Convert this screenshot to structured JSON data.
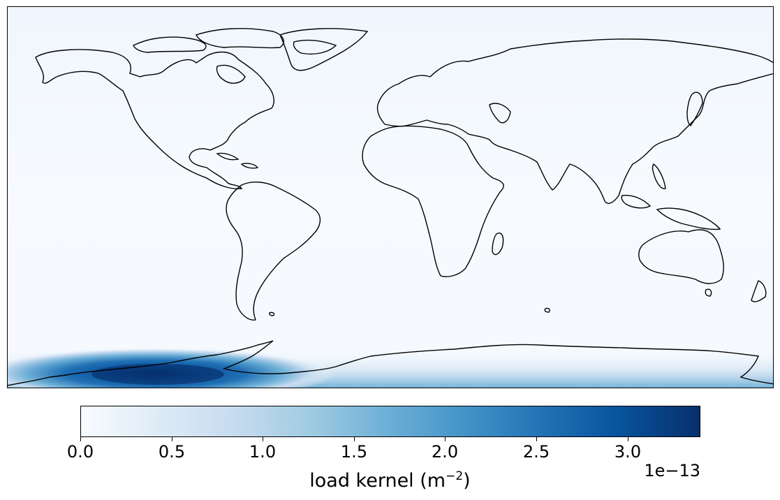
{
  "colormap": {
    "name": "Blues",
    "stops": [
      "#f7fbff",
      "#deebf7",
      "#c6dbef",
      "#9ecae1",
      "#6baed6",
      "#4292c6",
      "#2171b5",
      "#08519c",
      "#08306b"
    ]
  },
  "colorbar": {
    "label_text": "load kernel (m",
    "label_exponent": "−2",
    "label_close": ")",
    "offset_text": "1e−13",
    "range": [
      0.0,
      3.4
    ],
    "ticks": [
      {
        "value": 0.0,
        "label": "0.0"
      },
      {
        "value": 0.5,
        "label": "0.5"
      },
      {
        "value": 1.0,
        "label": "1.0"
      },
      {
        "value": 1.5,
        "label": "1.5"
      },
      {
        "value": 2.0,
        "label": "2.0"
      },
      {
        "value": 2.5,
        "label": "2.5"
      },
      {
        "value": 3.0,
        "label": "3.0"
      }
    ]
  },
  "field": {
    "peak_value": 3.4,
    "peak_region": "Antarctica (West Antarctica / Weddell Sea sector)",
    "coastline_color": "#000000"
  }
}
